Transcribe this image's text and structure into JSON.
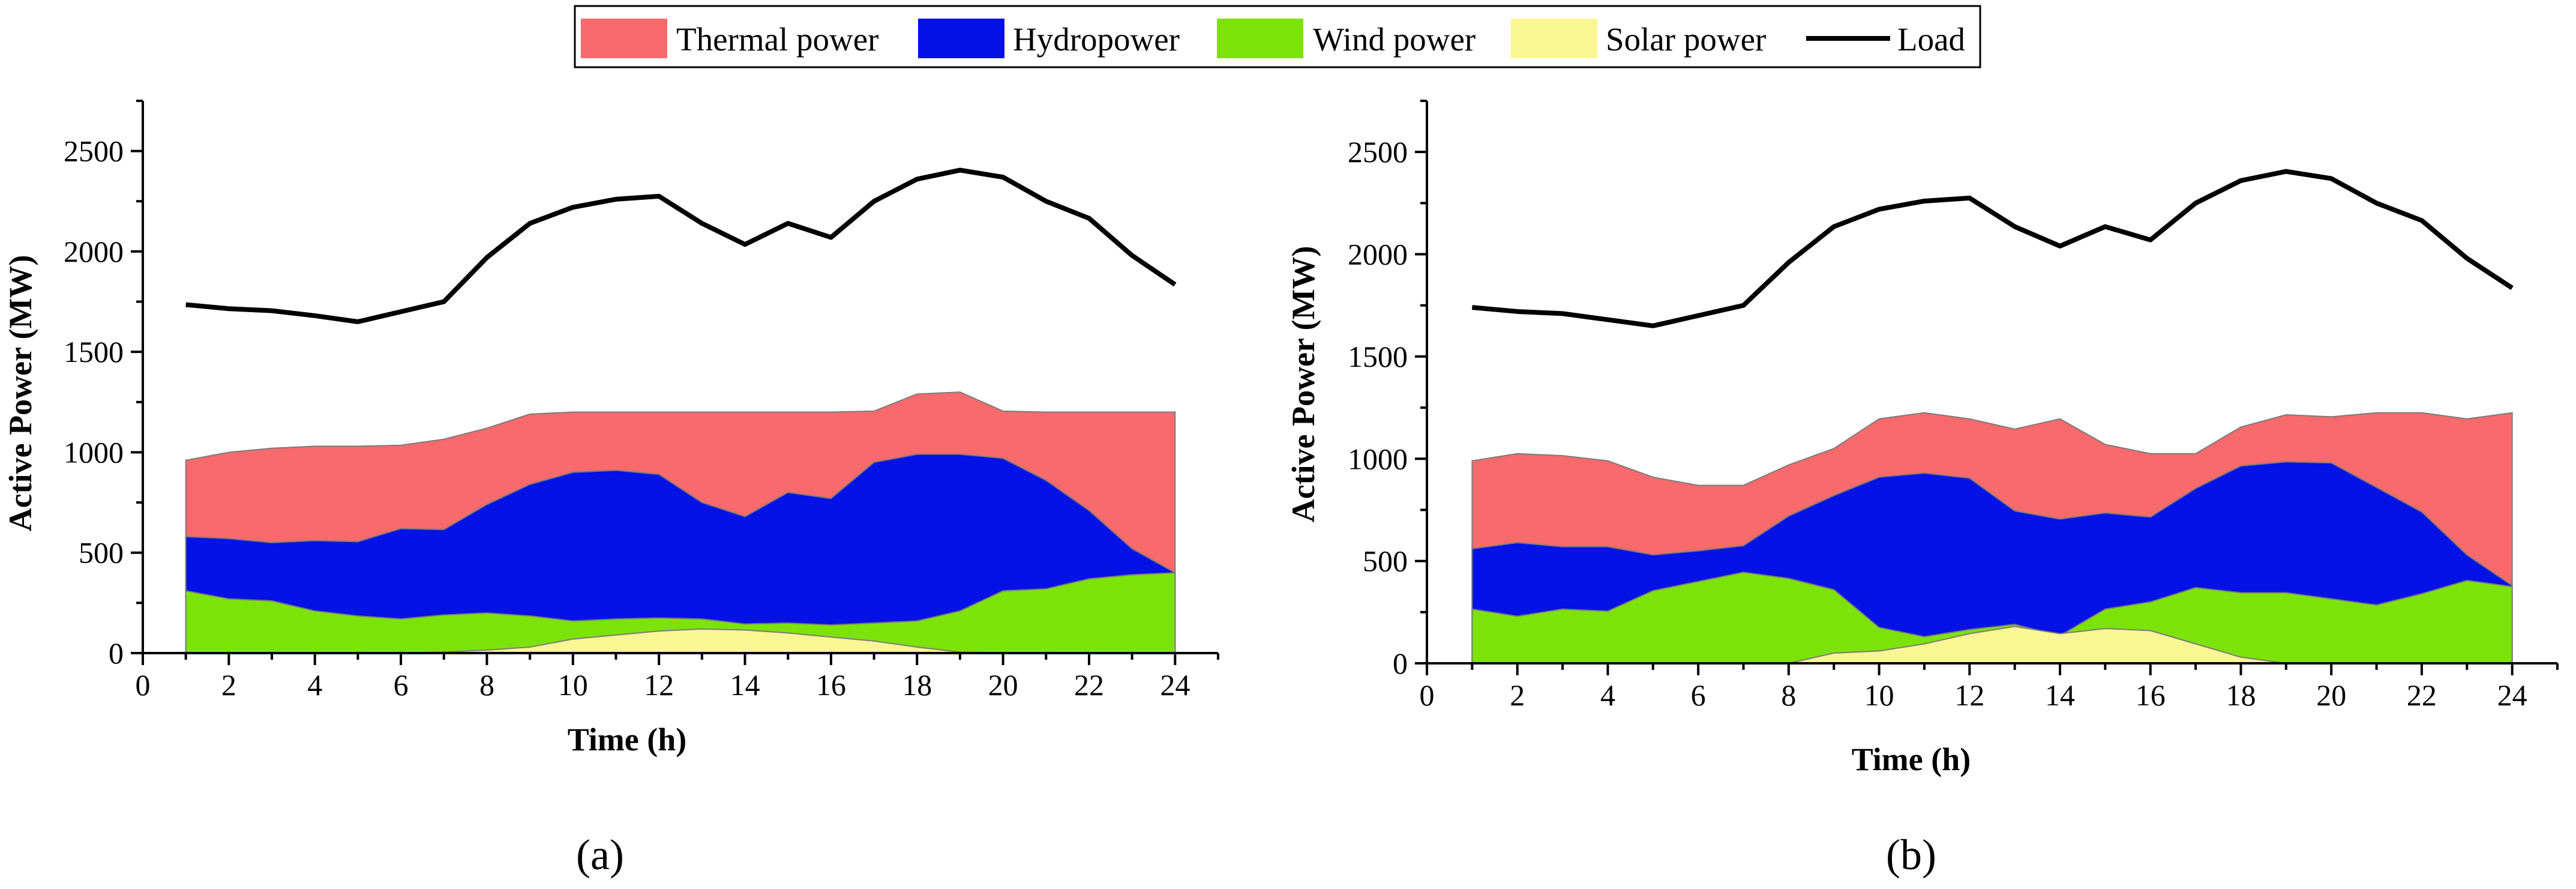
{
  "legend": {
    "entries": [
      {
        "label": "Thermal power",
        "kind": "area",
        "color": "#f86a6b"
      },
      {
        "label": "Hydropower",
        "kind": "area",
        "color": "#0412e6"
      },
      {
        "label": "Wind power",
        "kind": "area",
        "color": "#7be30a"
      },
      {
        "label": "Solar power",
        "kind": "area",
        "color": "#fbf694"
      },
      {
        "label": "Load",
        "kind": "line",
        "color": "#000000"
      }
    ]
  },
  "chart_data": [
    {
      "panel": "(a)",
      "type": "area",
      "stacking": "overlapping-cumulative",
      "xlabel": "Time (h)",
      "ylabel": "Active Power (MW)",
      "xlim": [
        0,
        25
      ],
      "ylim": [
        0,
        2750
      ],
      "xticks": [
        0,
        2,
        4,
        6,
        8,
        10,
        12,
        14,
        16,
        18,
        20,
        22,
        24
      ],
      "yticks": [
        0,
        500,
        1000,
        1500,
        2000,
        2500
      ],
      "x": [
        1,
        2,
        3,
        4,
        5,
        6,
        7,
        8,
        9,
        10,
        11,
        12,
        13,
        14,
        15,
        16,
        17,
        18,
        19,
        20,
        21,
        22,
        23,
        24
      ],
      "series": [
        {
          "name": "Thermal power",
          "color": "#f86a6b",
          "values": [
            960,
            1000,
            1020,
            1030,
            1030,
            1035,
            1065,
            1120,
            1190,
            1200,
            1200,
            1200,
            1200,
            1200,
            1200,
            1200,
            1205,
            1290,
            1300,
            1205,
            1200,
            1200,
            1200,
            1200
          ]
        },
        {
          "name": "Hydropower",
          "color": "#0412e6",
          "values": [
            580,
            570,
            550,
            560,
            555,
            620,
            615,
            740,
            840,
            900,
            910,
            890,
            750,
            680,
            800,
            770,
            950,
            990,
            990,
            970,
            860,
            710,
            520,
            400
          ]
        },
        {
          "name": "Wind power",
          "color": "#7be30a",
          "values": [
            310,
            270,
            260,
            210,
            185,
            170,
            190,
            200,
            185,
            160,
            170,
            175,
            170,
            145,
            150,
            140,
            150,
            160,
            210,
            310,
            320,
            370,
            390,
            400
          ]
        },
        {
          "name": "Solar power",
          "color": "#fbf694",
          "values": [
            0,
            0,
            0,
            0,
            0,
            0,
            5,
            15,
            30,
            70,
            90,
            110,
            120,
            115,
            100,
            80,
            60,
            30,
            5,
            0,
            0,
            0,
            0,
            0
          ]
        },
        {
          "name": "Load",
          "color": "#000000",
          "kind": "line",
          "values": [
            1735,
            1715,
            1705,
            1680,
            1650,
            1700,
            1750,
            1970,
            2140,
            2220,
            2260,
            2275,
            2140,
            2035,
            2140,
            2070,
            2250,
            2360,
            2405,
            2370,
            2250,
            2165,
            1980,
            1835
          ]
        }
      ]
    },
    {
      "panel": "(b)",
      "type": "area",
      "stacking": "overlapping-cumulative",
      "xlabel": "Time (h)",
      "ylabel": "Active Power (MW)",
      "xlim": [
        0,
        25
      ],
      "ylim": [
        0,
        2750
      ],
      "xticks": [
        0,
        2,
        4,
        6,
        8,
        10,
        12,
        14,
        16,
        18,
        20,
        22,
        24
      ],
      "yticks": [
        0,
        500,
        1000,
        1500,
        2000,
        2500
      ],
      "x": [
        1,
        2,
        3,
        4,
        5,
        6,
        7,
        8,
        9,
        10,
        11,
        12,
        13,
        14,
        15,
        16,
        17,
        18,
        19,
        20,
        21,
        22,
        23,
        24
      ],
      "series": [
        {
          "name": "Thermal power",
          "color": "#f86a6b",
          "values": [
            990,
            1025,
            1015,
            990,
            910,
            870,
            870,
            970,
            1050,
            1195,
            1225,
            1195,
            1145,
            1195,
            1070,
            1025,
            1025,
            1155,
            1215,
            1205,
            1225,
            1225,
            1195,
            1225
          ]
        },
        {
          "name": "Hydropower",
          "color": "#0412e6",
          "values": [
            560,
            590,
            570,
            570,
            530,
            550,
            575,
            720,
            820,
            910,
            930,
            905,
            745,
            705,
            735,
            715,
            855,
            965,
            985,
            980,
            860,
            740,
            530,
            380
          ]
        },
        {
          "name": "Wind power",
          "color": "#7be30a",
          "values": [
            265,
            230,
            265,
            255,
            355,
            400,
            445,
            415,
            360,
            175,
            130,
            165,
            190,
            135,
            265,
            300,
            370,
            345,
            345,
            315,
            285,
            340,
            405,
            375
          ]
        },
        {
          "name": "Solar power",
          "color": "#fbf694",
          "values": [
            0,
            0,
            0,
            0,
            0,
            0,
            0,
            0,
            50,
            60,
            95,
            145,
            180,
            145,
            170,
            160,
            95,
            30,
            0,
            0,
            0,
            0,
            0,
            0
          ]
        },
        {
          "name": "Load",
          "color": "#000000",
          "kind": "line",
          "values": [
            1740,
            1720,
            1710,
            1680,
            1650,
            1700,
            1750,
            1960,
            2135,
            2220,
            2260,
            2275,
            2135,
            2040,
            2135,
            2070,
            2250,
            2360,
            2405,
            2370,
            2250,
            2165,
            1980,
            1835
          ]
        }
      ]
    }
  ],
  "captions": {
    "a": "(a)",
    "b": "(b)"
  }
}
